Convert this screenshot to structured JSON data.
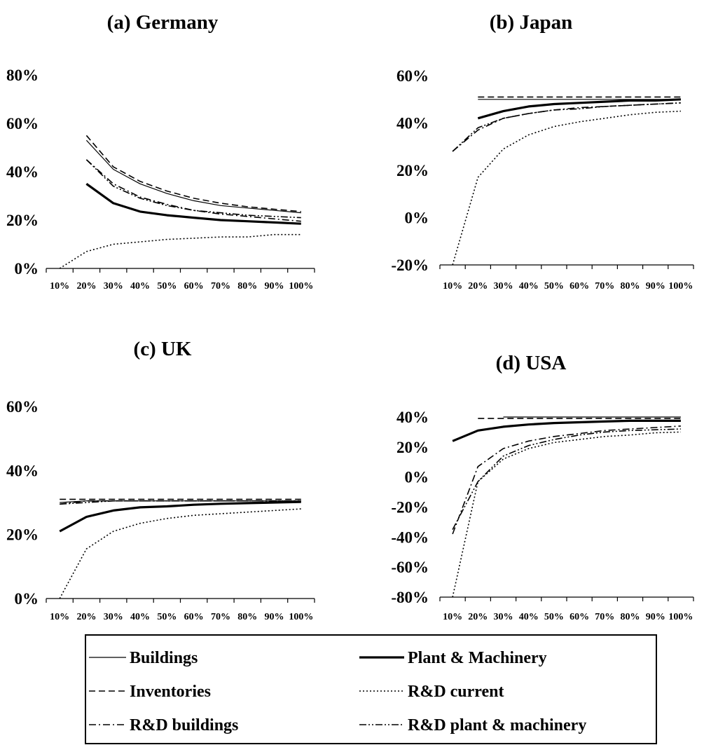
{
  "chart_data": [
    {
      "type": "line",
      "title": "(a) Germany",
      "categories": [
        "10%",
        "20%",
        "30%",
        "40%",
        "50%",
        "60%",
        "70%",
        "80%",
        "90%",
        "100%"
      ],
      "yticks": [
        "0%",
        "20%",
        "40%",
        "60%",
        "80%"
      ],
      "ylim": [
        0,
        80
      ],
      "series": [
        {
          "name": "Buildings",
          "values": [
            null,
            53,
            41,
            35,
            31,
            28,
            26,
            25,
            24,
            23
          ]
        },
        {
          "name": "Plant & Machinery",
          "values": [
            null,
            35,
            27,
            23.5,
            22,
            21,
            20,
            19.5,
            19,
            18.5
          ]
        },
        {
          "name": "Inventories",
          "values": [
            null,
            55,
            42,
            36,
            32,
            29,
            27,
            25.5,
            24.5,
            23.5
          ]
        },
        {
          "name": "R&D current",
          "values": [
            0,
            7,
            10,
            11,
            12,
            12.5,
            13,
            13,
            14,
            14
          ]
        },
        {
          "name": "R&D buildings",
          "values": [
            null,
            45,
            35,
            29.5,
            26.5,
            24,
            22.5,
            21.5,
            20.5,
            19.5
          ]
        },
        {
          "name": "R&D plant & machinery",
          "values": [
            null,
            45,
            34,
            29,
            26,
            24,
            23,
            22,
            21.5,
            21
          ]
        }
      ]
    },
    {
      "type": "line",
      "title": "(b) Japan",
      "categories": [
        "10%",
        "20%",
        "30%",
        "40%",
        "50%",
        "60%",
        "70%",
        "80%",
        "90%",
        "100%"
      ],
      "yticks": [
        "-20%",
        "0%",
        "20%",
        "40%",
        "60%"
      ],
      "ylim": [
        -20,
        60
      ],
      "series": [
        {
          "name": "Buildings",
          "values": [
            null,
            50,
            50,
            50,
            50,
            50,
            50,
            50,
            50,
            50
          ]
        },
        {
          "name": "Plant & Machinery",
          "values": [
            null,
            42,
            45,
            47,
            48,
            48.5,
            49,
            49.5,
            49.5,
            50
          ]
        },
        {
          "name": "Inventories",
          "values": [
            null,
            51,
            51,
            51,
            51,
            51,
            51,
            51,
            51,
            51
          ]
        },
        {
          "name": "R&D current",
          "values": [
            -20,
            17,
            29,
            35,
            38.5,
            40.5,
            42,
            43.5,
            44.5,
            45
          ]
        },
        {
          "name": "R&D buildings",
          "values": [
            28,
            37,
            42,
            44,
            45.5,
            46.5,
            47,
            47.5,
            48,
            48.5
          ]
        },
        {
          "name": "R&D plant & machinery",
          "values": [
            28,
            38,
            42,
            44,
            45.5,
            46,
            47,
            47.5,
            48,
            48.5
          ]
        }
      ]
    },
    {
      "type": "line",
      "title": "(c) UK",
      "categories": [
        "10%",
        "20%",
        "30%",
        "40%",
        "50%",
        "60%",
        "70%",
        "80%",
        "90%",
        "100%"
      ],
      "yticks": [
        "0%",
        "20%",
        "40%",
        "60%"
      ],
      "ylim": [
        0,
        60
      ],
      "series": [
        {
          "name": "Buildings",
          "values": [
            30,
            30.5,
            30.5,
            30.5,
            30.5,
            30.5,
            30.5,
            30.5,
            30.5,
            30.5
          ]
        },
        {
          "name": "Plant & Machinery",
          "values": [
            21,
            25.5,
            27.5,
            28.5,
            28.8,
            29.3,
            29.6,
            29.8,
            30,
            30.2
          ]
        },
        {
          "name": "Inventories",
          "values": [
            31,
            31,
            31,
            31,
            31,
            31,
            31,
            31,
            31,
            31
          ]
        },
        {
          "name": "R&D current",
          "values": [
            0,
            15.5,
            21,
            23.5,
            25,
            26,
            26.5,
            27,
            27.5,
            28
          ]
        },
        {
          "name": "R&D buildings",
          "values": [
            29.5,
            30.5,
            30.5,
            30.5,
            30.5,
            30.5,
            30.5,
            30.5,
            30.5,
            30.5
          ]
        },
        {
          "name": "R&D plant & machinery",
          "values": [
            29.5,
            30,
            30.5,
            30.5,
            30.5,
            30.5,
            30.5,
            30.5,
            30.5,
            30.5
          ]
        }
      ]
    },
    {
      "type": "line",
      "title": "(d) USA",
      "categories": [
        "10%",
        "20%",
        "30%",
        "40%",
        "50%",
        "60%",
        "70%",
        "80%",
        "90%",
        "100%"
      ],
      "yticks": [
        "-80%",
        "-60%",
        "-40%",
        "-20%",
        "0%",
        "20%",
        "40%"
      ],
      "ylim": [
        -80,
        40
      ],
      "series": [
        {
          "name": "Buildings",
          "values": [
            null,
            null,
            40,
            40,
            40,
            40,
            40,
            40,
            40,
            40
          ]
        },
        {
          "name": "Plant & Machinery",
          "values": [
            24,
            31,
            33.5,
            35,
            36,
            36.5,
            37,
            37.5,
            37.5,
            37.5
          ]
        },
        {
          "name": "Inventories",
          "values": [
            null,
            39,
            39,
            39,
            39,
            39,
            39,
            39,
            39,
            39
          ]
        },
        {
          "name": "R&D current",
          "values": [
            -80,
            -3,
            12,
            19,
            23,
            25,
            27,
            28,
            29.5,
            30
          ]
        },
        {
          "name": "R&D buildings",
          "values": [
            -38,
            7,
            19,
            24,
            27,
            29,
            31,
            32,
            33,
            34
          ]
        },
        {
          "name": "R&D plant & machinery",
          "values": [
            -35,
            -3,
            14,
            21,
            25,
            28,
            30,
            31,
            31.5,
            32
          ]
        }
      ]
    }
  ],
  "legend": [
    {
      "label": "Buildings",
      "style": "thin-solid"
    },
    {
      "label": "Plant & Machinery",
      "style": "thick-solid"
    },
    {
      "label": "Inventories",
      "style": "dashed"
    },
    {
      "label": "R&D current",
      "style": "dotted"
    },
    {
      "label": "R&D buildings",
      "style": "dash-dot"
    },
    {
      "label": "R&D plant & machinery",
      "style": "dash-dot-dot"
    }
  ]
}
